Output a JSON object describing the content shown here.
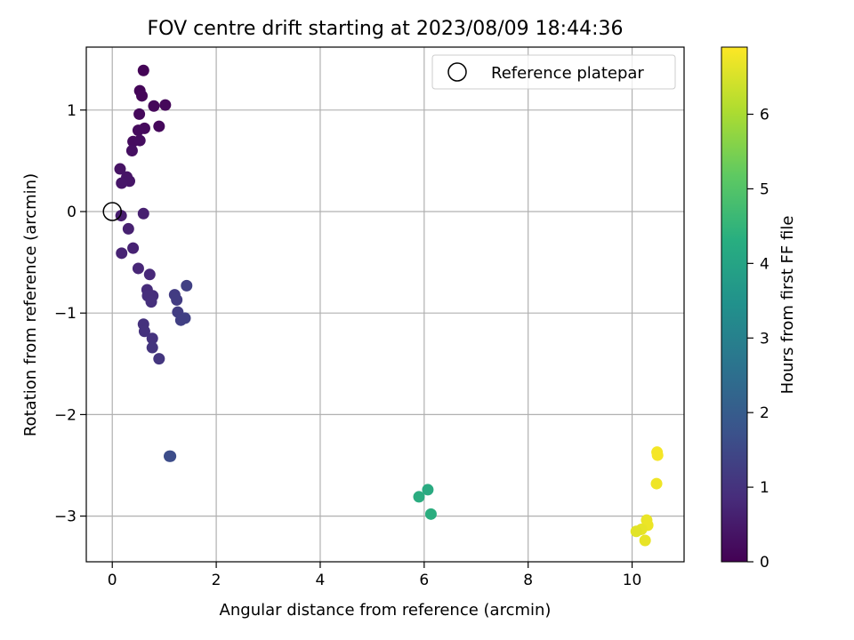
{
  "chart_data": {
    "type": "scatter",
    "title": "FOV centre drift starting at 2023/08/09 18:44:36",
    "xlabel": "Angular distance from reference (arcmin)",
    "ylabel": "Rotation from reference (arcmin)",
    "xlim": [
      -0.5,
      11.0
    ],
    "ylim": [
      -3.45,
      1.62
    ],
    "xticks": [
      "0",
      "2",
      "4",
      "6",
      "8",
      "10"
    ],
    "xtick_values": [
      0,
      2,
      4,
      6,
      8,
      10
    ],
    "yticks": [
      "−3",
      "−2",
      "−1",
      "0",
      "1"
    ],
    "ytick_values": [
      -3,
      -2,
      -1,
      0,
      1
    ],
    "grid": true,
    "legend": {
      "label": "Reference platepar",
      "placement": "top-right"
    },
    "reference_point": {
      "x": 0,
      "y": 0
    },
    "colorbar": {
      "label": "Hours from first FF file",
      "range": [
        0,
        6.9
      ],
      "ticks": [
        "0",
        "1",
        "2",
        "3",
        "4",
        "5",
        "6"
      ],
      "tick_values": [
        0,
        1,
        2,
        3,
        4,
        5,
        6
      ],
      "colormap": "viridis"
    },
    "points": [
      {
        "x": 0.6,
        "y": 1.39,
        "c": 0.05
      },
      {
        "x": 0.53,
        "y": 1.19,
        "c": 0.08
      },
      {
        "x": 0.57,
        "y": 1.14,
        "c": 0.1
      },
      {
        "x": 1.02,
        "y": 1.05,
        "c": 0.13
      },
      {
        "x": 0.8,
        "y": 1.04,
        "c": 0.12
      },
      {
        "x": 0.52,
        "y": 0.96,
        "c": 0.15
      },
      {
        "x": 0.9,
        "y": 0.84,
        "c": 0.14
      },
      {
        "x": 0.62,
        "y": 0.82,
        "c": 0.18
      },
      {
        "x": 0.5,
        "y": 0.8,
        "c": 0.2
      },
      {
        "x": 0.4,
        "y": 0.69,
        "c": 0.22
      },
      {
        "x": 0.53,
        "y": 0.7,
        "c": 0.24
      },
      {
        "x": 0.38,
        "y": 0.6,
        "c": 0.28
      },
      {
        "x": 0.15,
        "y": 0.42,
        "c": 0.35
      },
      {
        "x": 0.28,
        "y": 0.34,
        "c": 0.38
      },
      {
        "x": 0.33,
        "y": 0.3,
        "c": 0.4
      },
      {
        "x": 0.18,
        "y": 0.28,
        "c": 0.42
      },
      {
        "x": 0.17,
        "y": -0.04,
        "c": 0.55
      },
      {
        "x": 0.6,
        "y": -0.02,
        "c": 0.6
      },
      {
        "x": 0.31,
        "y": -0.17,
        "c": 0.62
      },
      {
        "x": 0.4,
        "y": -0.36,
        "c": 0.65
      },
      {
        "x": 0.18,
        "y": -0.41,
        "c": 0.68
      },
      {
        "x": 0.5,
        "y": -0.56,
        "c": 0.75
      },
      {
        "x": 0.72,
        "y": -0.62,
        "c": 0.8
      },
      {
        "x": 1.43,
        "y": -0.73,
        "c": 1.3
      },
      {
        "x": 0.67,
        "y": -0.77,
        "c": 0.85
      },
      {
        "x": 0.78,
        "y": -0.83,
        "c": 0.9
      },
      {
        "x": 0.68,
        "y": -0.83,
        "c": 0.92
      },
      {
        "x": 1.2,
        "y": -0.82,
        "c": 1.2
      },
      {
        "x": 0.75,
        "y": -0.89,
        "c": 0.95
      },
      {
        "x": 1.24,
        "y": -0.87,
        "c": 1.22
      },
      {
        "x": 1.26,
        "y": -0.99,
        "c": 1.24
      },
      {
        "x": 1.4,
        "y": -1.05,
        "c": 1.3
      },
      {
        "x": 1.32,
        "y": -1.07,
        "c": 1.28
      },
      {
        "x": 0.6,
        "y": -1.11,
        "c": 0.98
      },
      {
        "x": 0.62,
        "y": -1.18,
        "c": 1.0
      },
      {
        "x": 0.77,
        "y": -1.25,
        "c": 1.02
      },
      {
        "x": 0.77,
        "y": -1.34,
        "c": 1.05
      },
      {
        "x": 0.9,
        "y": -1.45,
        "c": 1.08
      },
      {
        "x": 1.1,
        "y": -2.41,
        "c": 1.6
      },
      {
        "x": 1.12,
        "y": -2.41,
        "c": 1.62
      },
      {
        "x": 6.07,
        "y": -2.74,
        "c": 4.2
      },
      {
        "x": 5.9,
        "y": -2.81,
        "c": 4.25
      },
      {
        "x": 6.13,
        "y": -2.98,
        "c": 4.3
      },
      {
        "x": 10.48,
        "y": -2.37,
        "c": 6.8
      },
      {
        "x": 10.49,
        "y": -2.4,
        "c": 6.82
      },
      {
        "x": 10.47,
        "y": -2.68,
        "c": 6.75
      },
      {
        "x": 10.28,
        "y": -3.04,
        "c": 6.7
      },
      {
        "x": 10.3,
        "y": -3.09,
        "c": 6.72
      },
      {
        "x": 10.18,
        "y": -3.13,
        "c": 6.65
      },
      {
        "x": 10.08,
        "y": -3.15,
        "c": 6.6
      },
      {
        "x": 10.25,
        "y": -3.24,
        "c": 6.68
      }
    ]
  }
}
